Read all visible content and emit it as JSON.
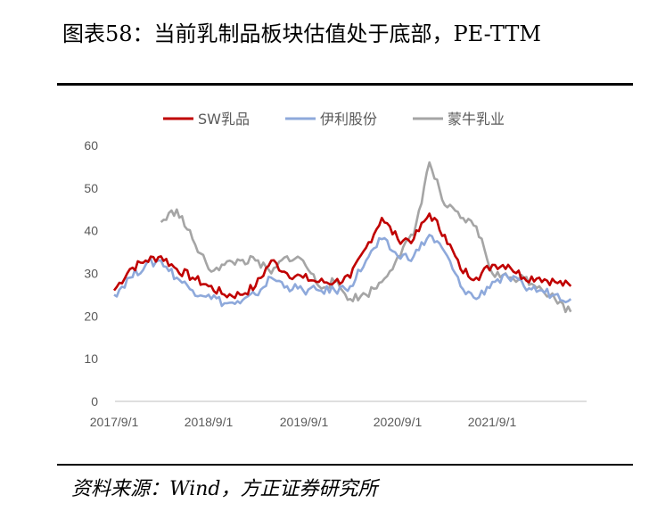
{
  "title": "图表58：当前乳制品板块估值处于底部，PE-TTM",
  "source": "资料来源：Wind，方正证券研究所",
  "chart_data": {
    "type": "line",
    "title": "图表58：当前乳制品板块估值处于底部，PE-TTM",
    "xlabel": "",
    "ylabel": "",
    "ylim": [
      0,
      60
    ],
    "yticks": [
      0,
      10,
      20,
      30,
      40,
      50,
      60
    ],
    "x_tick_labels": [
      "2017/9/1",
      "2018/9/1",
      "2019/9/1",
      "2020/9/1",
      "2021/9/1"
    ],
    "x": [
      "2017/9/1",
      "2017/11/1",
      "2018/1/1",
      "2018/3/1",
      "2018/5/1",
      "2018/7/1",
      "2018/9/1",
      "2018/11/1",
      "2019/1/1",
      "2019/3/1",
      "2019/5/1",
      "2019/7/1",
      "2019/9/1",
      "2019/11/1",
      "2020/1/1",
      "2020/3/1",
      "2020/5/1",
      "2020/7/1",
      "2020/9/1",
      "2020/11/1",
      "2021/1/1",
      "2021/3/1",
      "2021/5/1",
      "2021/7/1",
      "2021/9/1",
      "2021/11/1",
      "2022/1/1",
      "2022/3/1",
      "2022/5/1",
      "2022/7/1"
    ],
    "legend_position": "top",
    "grid": false,
    "series": [
      {
        "name": "SW乳品",
        "color": "#C00000",
        "values": [
          26,
          31,
          33,
          34,
          31,
          29,
          27,
          25,
          25,
          27,
          33,
          30,
          29,
          28,
          28,
          29,
          36,
          43,
          38,
          38,
          44,
          39,
          31,
          29,
          32,
          32,
          29,
          29,
          28,
          27
        ]
      },
      {
        "name": "伊利股份",
        "color": "#8EA9DB",
        "values": [
          25,
          29,
          32,
          33,
          29,
          26,
          25,
          23,
          23,
          25,
          29,
          27,
          26,
          26,
          26,
          27,
          33,
          38,
          34,
          34,
          39,
          35,
          27,
          24,
          28,
          29,
          27,
          26,
          25,
          24
        ]
      },
      {
        "name": "蒙牛乳业",
        "color": "#A5A5A5",
        "values": [
          null,
          null,
          null,
          42,
          45,
          38,
          31,
          32,
          33,
          33,
          30,
          34,
          33,
          27,
          28,
          24,
          25,
          28,
          34,
          39,
          56,
          46,
          43,
          41,
          30,
          29,
          29,
          27,
          24,
          21
        ]
      }
    ]
  }
}
